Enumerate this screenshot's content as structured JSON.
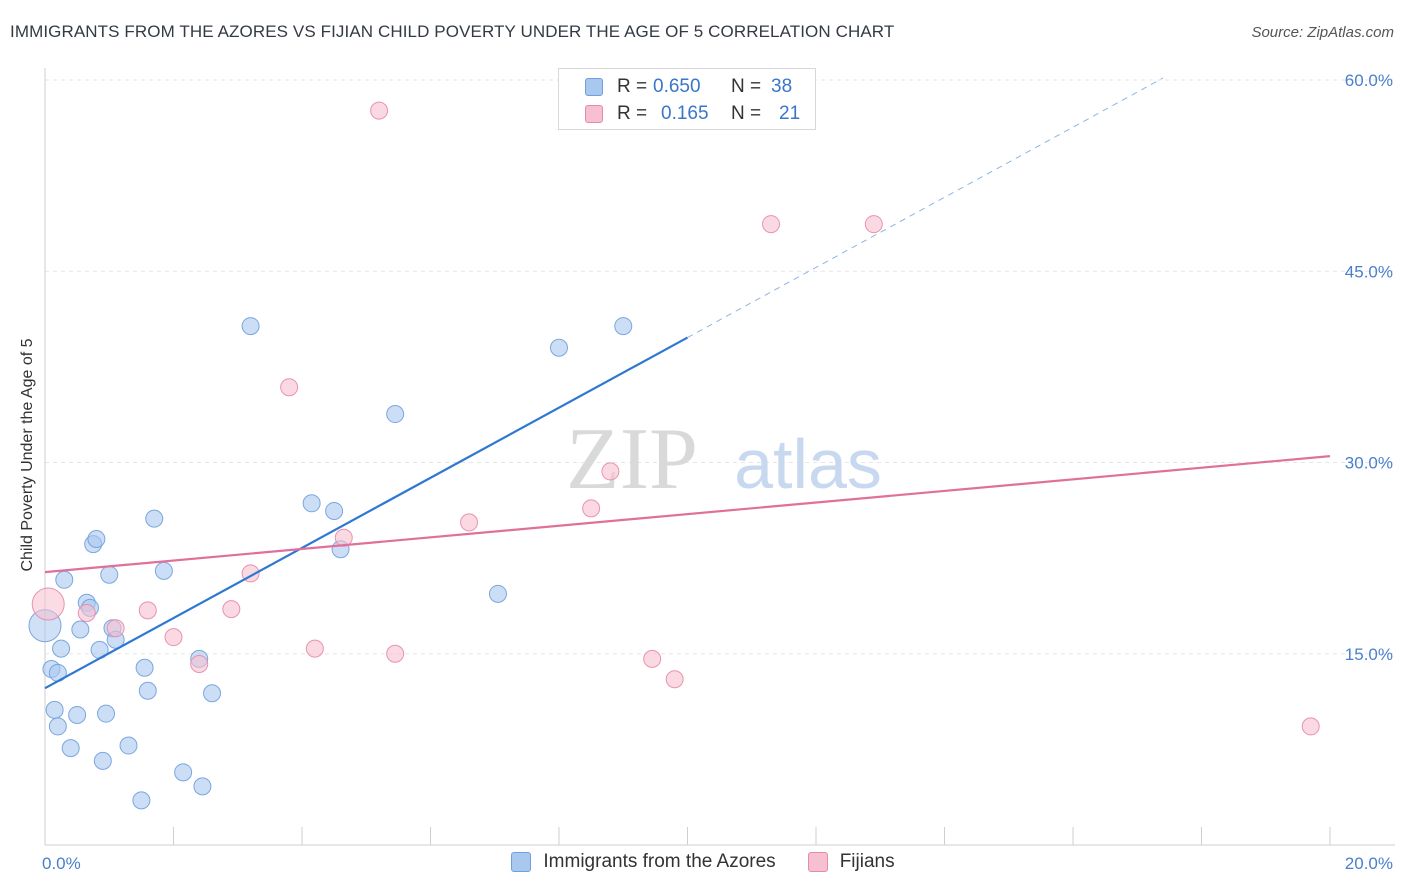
{
  "title": "IMMIGRANTS FROM THE AZORES VS FIJIAN CHILD POVERTY UNDER THE AGE OF 5 CORRELATION CHART",
  "source": "Source: ZipAtlas.com",
  "watermark": {
    "zip": "ZIP",
    "atlas": "atlas"
  },
  "legend": {
    "series": [
      {
        "r_label": "R =",
        "r_value": "0.650",
        "n_label": "N =",
        "n_value": "38",
        "color": "#a9c8f0",
        "border": "#6f9fdc"
      },
      {
        "r_label": "R =",
        "r_value": "0.165",
        "n_label": "N =",
        "n_value": "21",
        "color": "#f7c0d0",
        "border": "#e58aa8"
      }
    ]
  },
  "chart_data": {
    "type": "scatter",
    "title": "IMMIGRANTS FROM THE AZORES VS FIJIAN CHILD POVERTY UNDER THE AGE OF 5 CORRELATION CHART",
    "xlabel": "",
    "ylabel": "Child Poverty Under the Age of 5",
    "xlim": [
      0,
      20
    ],
    "ylim": [
      0,
      60
    ],
    "x_ticks": [
      {
        "value": 0,
        "label": "0.0%"
      },
      {
        "value": 20,
        "label": "20.0%"
      }
    ],
    "y_ticks": [
      {
        "value": 15,
        "label": "15.0%"
      },
      {
        "value": 30,
        "label": "30.0%"
      },
      {
        "value": 45,
        "label": "45.0%"
      },
      {
        "value": 60,
        "label": "60.0%"
      }
    ],
    "grid": true,
    "legend_position": "top-center",
    "series": [
      {
        "name": "Immigrants from the Azores",
        "color": "#a9c8f0",
        "edge_color": "#6f9fdc",
        "trend": {
          "x": [
            0,
            10
          ],
          "y": [
            12.3,
            39.8
          ],
          "extend_dashed_to_x": 17.4,
          "color": "#2f78d2"
        },
        "points": [
          {
            "x": 0.0,
            "y": 17.2,
            "big": true
          },
          {
            "x": 0.1,
            "y": 13.8
          },
          {
            "x": 0.2,
            "y": 13.5
          },
          {
            "x": 0.15,
            "y": 10.6
          },
          {
            "x": 0.3,
            "y": 20.8
          },
          {
            "x": 0.25,
            "y": 15.4
          },
          {
            "x": 0.4,
            "y": 7.6
          },
          {
            "x": 0.5,
            "y": 10.2
          },
          {
            "x": 0.55,
            "y": 16.9
          },
          {
            "x": 0.65,
            "y": 19.0
          },
          {
            "x": 0.7,
            "y": 18.6
          },
          {
            "x": 0.75,
            "y": 23.6
          },
          {
            "x": 0.8,
            "y": 24.0
          },
          {
            "x": 0.85,
            "y": 15.3
          },
          {
            "x": 0.9,
            "y": 6.6
          },
          {
            "x": 0.95,
            "y": 10.3
          },
          {
            "x": 1.0,
            "y": 21.2
          },
          {
            "x": 1.05,
            "y": 17.0
          },
          {
            "x": 1.1,
            "y": 16.1
          },
          {
            "x": 1.3,
            "y": 7.8
          },
          {
            "x": 1.5,
            "y": 3.5
          },
          {
            "x": 1.55,
            "y": 13.9
          },
          {
            "x": 1.6,
            "y": 12.1
          },
          {
            "x": 1.7,
            "y": 25.6
          },
          {
            "x": 1.85,
            "y": 21.5
          },
          {
            "x": 2.15,
            "y": 5.7
          },
          {
            "x": 2.4,
            "y": 14.6
          },
          {
            "x": 2.45,
            "y": 4.6
          },
          {
            "x": 2.6,
            "y": 11.9
          },
          {
            "x": 3.2,
            "y": 40.7
          },
          {
            "x": 4.15,
            "y": 26.8
          },
          {
            "x": 4.5,
            "y": 26.2
          },
          {
            "x": 4.6,
            "y": 23.2
          },
          {
            "x": 5.45,
            "y": 33.8
          },
          {
            "x": 7.05,
            "y": 19.7
          },
          {
            "x": 8.0,
            "y": 39.0
          },
          {
            "x": 9.0,
            "y": 40.7
          },
          {
            "x": 0.2,
            "y": 9.3
          }
        ]
      },
      {
        "name": "Fijians",
        "color": "#f7c0d0",
        "edge_color": "#e58aa8",
        "trend": {
          "x": [
            0,
            20
          ],
          "y": [
            21.4,
            30.5
          ],
          "color": "#e0709a"
        },
        "points": [
          {
            "x": 0.05,
            "y": 18.9,
            "big": true
          },
          {
            "x": 0.65,
            "y": 18.2
          },
          {
            "x": 1.1,
            "y": 17.0
          },
          {
            "x": 1.6,
            "y": 18.4
          },
          {
            "x": 2.0,
            "y": 16.3
          },
          {
            "x": 2.4,
            "y": 14.2
          },
          {
            "x": 2.9,
            "y": 18.5
          },
          {
            "x": 3.2,
            "y": 21.3
          },
          {
            "x": 3.8,
            "y": 35.9
          },
          {
            "x": 4.2,
            "y": 15.4
          },
          {
            "x": 4.65,
            "y": 24.1
          },
          {
            "x": 5.2,
            "y": 57.6
          },
          {
            "x": 5.45,
            "y": 15.0
          },
          {
            "x": 6.6,
            "y": 25.3
          },
          {
            "x": 8.5,
            "y": 26.4
          },
          {
            "x": 8.8,
            "y": 29.3
          },
          {
            "x": 9.45,
            "y": 14.6
          },
          {
            "x": 9.8,
            "y": 13.0
          },
          {
            "x": 11.3,
            "y": 48.7
          },
          {
            "x": 12.9,
            "y": 48.7
          },
          {
            "x": 19.7,
            "y": 9.3
          }
        ]
      }
    ]
  }
}
